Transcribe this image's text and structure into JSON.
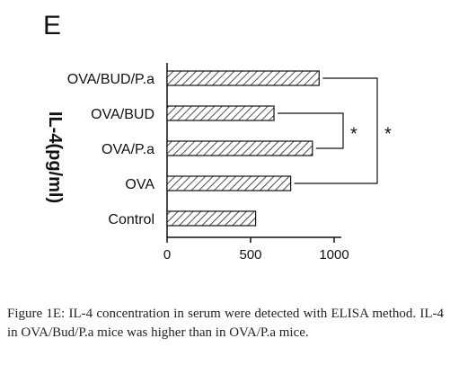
{
  "panel_label": "E",
  "caption": {
    "label": "Figure 1E:",
    "text": " IL-4 concentration in serum were detected with ELISA method. IL-4 in OVA/Bud/P.a mice was higher than in OVA/P.a mice."
  },
  "chart_data": {
    "type": "bar",
    "orientation": "horizontal",
    "categories": [
      "OVA/BUD/P.a",
      "OVA/BUD",
      "OVA/P.a",
      "OVA",
      "Control"
    ],
    "values": [
      910,
      640,
      870,
      740,
      530
    ],
    "xlim": [
      0,
      1000
    ],
    "xticks": [
      0,
      500,
      1000
    ],
    "ylabel": "IL-4(pg/ml)",
    "bar_fill": "hatched",
    "significance": [
      {
        "pair": [
          "OVA/BUD/P.a",
          "OVA"
        ],
        "label": "*"
      },
      {
        "pair": [
          "OVA/BUD",
          "OVA/P.a"
        ],
        "label": "*"
      }
    ]
  }
}
